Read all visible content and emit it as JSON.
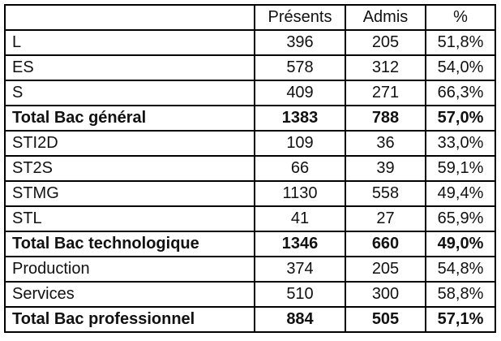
{
  "chart_data": {
    "type": "table",
    "title": "",
    "columns": [
      "",
      "Présents",
      "Admis",
      "%"
    ],
    "rows": [
      {
        "label": "L",
        "presents": "396",
        "admis": "205",
        "pct": "51,8%",
        "bold": false
      },
      {
        "label": "ES",
        "presents": "578",
        "admis": "312",
        "pct": "54,0%",
        "bold": false
      },
      {
        "label": "S",
        "presents": "409",
        "admis": "271",
        "pct": "66,3%",
        "bold": false
      },
      {
        "label": "Total Bac général",
        "presents": "1383",
        "admis": "788",
        "pct": "57,0%",
        "bold": true
      },
      {
        "label": "STI2D",
        "presents": "109",
        "admis": "36",
        "pct": "33,0%",
        "bold": false
      },
      {
        "label": "ST2S",
        "presents": "66",
        "admis": "39",
        "pct": "59,1%",
        "bold": false
      },
      {
        "label": "STMG",
        "presents": "1130",
        "admis": "558",
        "pct": "49,4%",
        "bold": false
      },
      {
        "label": "STL",
        "presents": "41",
        "admis": "27",
        "pct": "65,9%",
        "bold": false
      },
      {
        "label": "Total Bac technologique",
        "presents": "1346",
        "admis": "660",
        "pct": "49,0%",
        "bold": true
      },
      {
        "label": "Production",
        "presents": "374",
        "admis": "205",
        "pct": "54,8%",
        "bold": false
      },
      {
        "label": "Services",
        "presents": "510",
        "admis": "300",
        "pct": "58,8%",
        "bold": false
      },
      {
        "label": "Total Bac professionnel",
        "presents": "884",
        "admis": "505",
        "pct": "57,1%",
        "bold": true
      }
    ]
  },
  "styles": {
    "border_color": "#000000",
    "text_color": "#111111",
    "background": "#ffffff"
  }
}
